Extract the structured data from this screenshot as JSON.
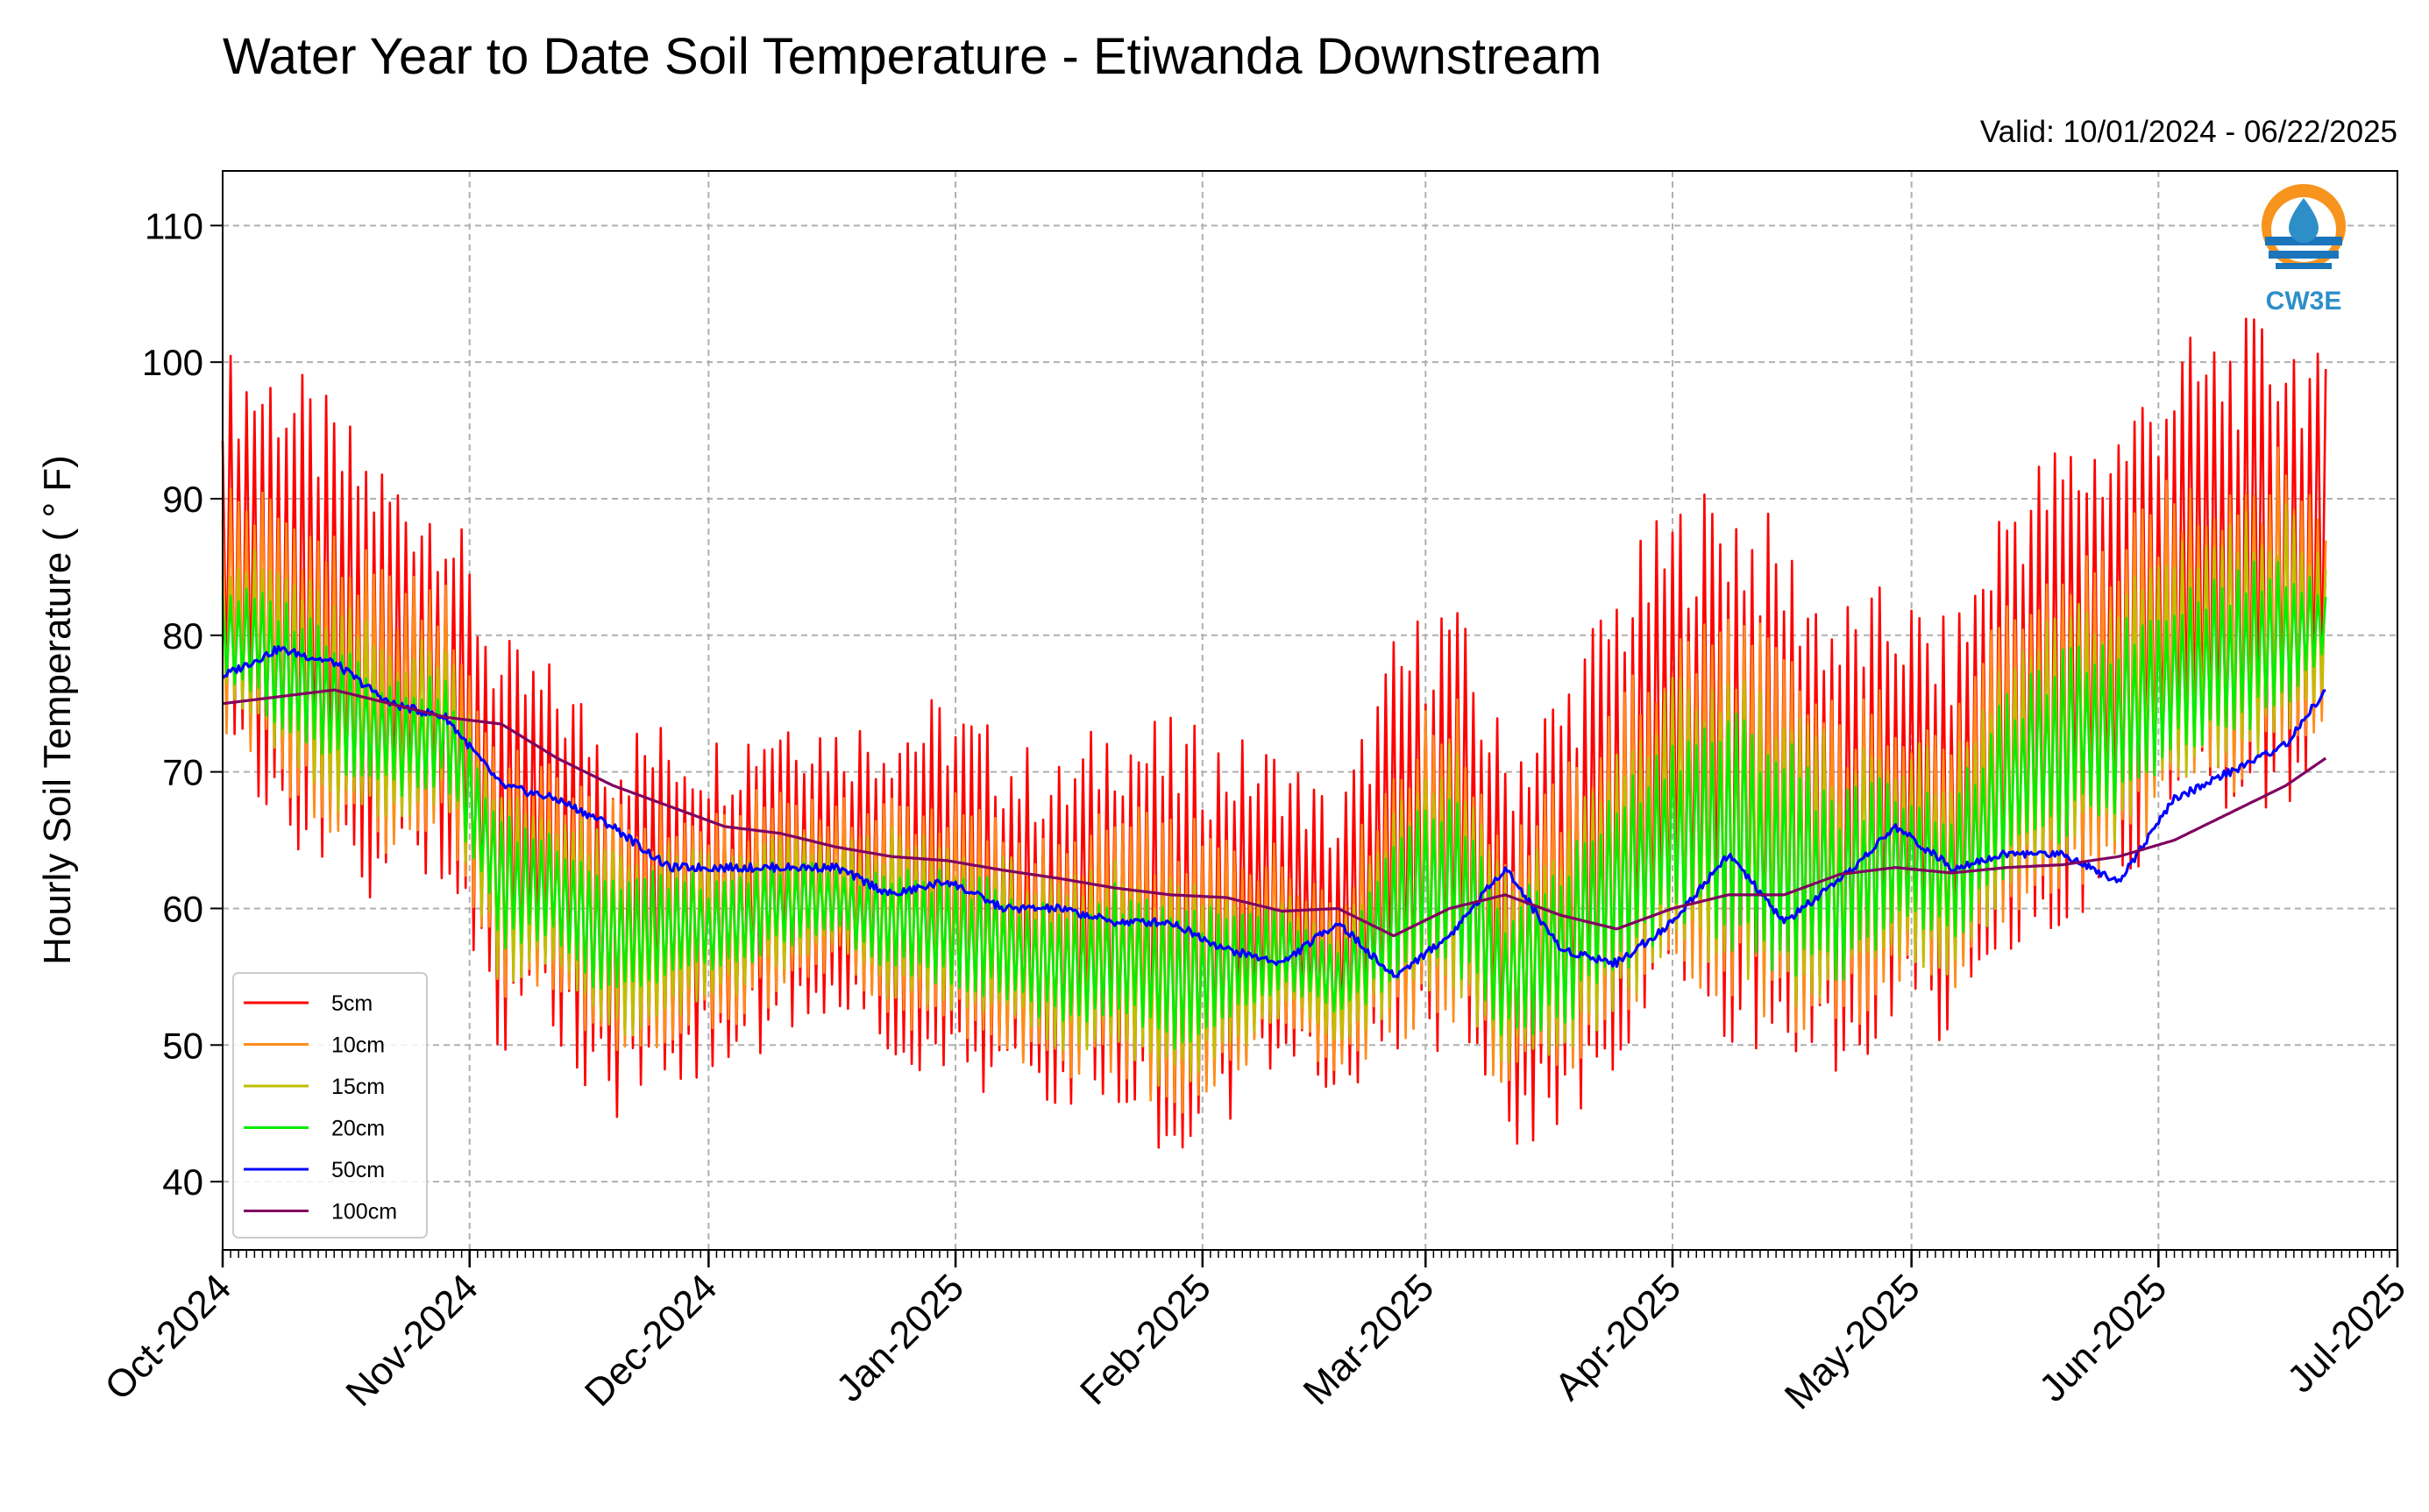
{
  "chart_data": {
    "type": "line",
    "title": "Water Year to Date Soil Temperature - Etiwanda Downstream",
    "subtitle": "Valid: 10/01/2024 - 06/22/2025",
    "ylabel": "Hourly Soil Temperature ( ° F)",
    "xlabel": "",
    "ylim": [
      35,
      114
    ],
    "yticks": [
      40,
      50,
      60,
      70,
      80,
      90,
      100,
      110
    ],
    "xlim": [
      "2024-10-01",
      "2025-07-01"
    ],
    "x_tick_labels": [
      "Oct-2024",
      "Nov-2024",
      "Dec-2024",
      "Jan-2025",
      "Feb-2025",
      "Mar-2025",
      "Apr-2025",
      "May-2025",
      "Jun-2025",
      "Jul-2025"
    ],
    "x_tick_dates": [
      "2024-10-01",
      "2024-11-01",
      "2024-12-01",
      "2025-01-01",
      "2025-02-01",
      "2025-03-01",
      "2025-04-01",
      "2025-05-01",
      "2025-06-01",
      "2025-07-01"
    ],
    "grid": true,
    "legend_position": "lower-left",
    "logo_text": "CW3E",
    "x": [
      "2024-10-01",
      "2024-10-08",
      "2024-10-15",
      "2024-10-22",
      "2024-10-29",
      "2024-11-05",
      "2024-11-12",
      "2024-11-19",
      "2024-11-26",
      "2024-12-03",
      "2024-12-10",
      "2024-12-17",
      "2024-12-24",
      "2024-12-31",
      "2025-01-07",
      "2025-01-14",
      "2025-01-21",
      "2025-01-28",
      "2025-02-04",
      "2025-02-11",
      "2025-02-18",
      "2025-02-25",
      "2025-03-04",
      "2025-03-11",
      "2025-03-18",
      "2025-03-25",
      "2025-04-01",
      "2025-04-08",
      "2025-04-15",
      "2025-04-22",
      "2025-04-29",
      "2025-05-06",
      "2025-05-13",
      "2025-05-20",
      "2025-05-27",
      "2025-06-03",
      "2025-06-10",
      "2025-06-17",
      "2025-06-22"
    ],
    "series": [
      {
        "name": "5cm",
        "color": "#ff0000",
        "max": [
          101,
          101,
          97,
          93,
          91,
          80,
          78,
          74,
          74,
          73,
          76,
          74,
          75,
          76,
          73,
          71,
          75,
          74,
          73,
          72,
          68,
          80,
          84,
          73,
          77,
          85,
          90,
          92,
          88,
          83,
          84,
          81,
          92,
          95,
          97,
          102,
          103,
          104,
          100
        ],
        "min": [
          71,
          66,
          61,
          60,
          62,
          49,
          50,
          44,
          47,
          48,
          50,
          52,
          48,
          47,
          46,
          44,
          45,
          40,
          44,
          48,
          45,
          48,
          50,
          42,
          44,
          47,
          53,
          50,
          48,
          46,
          51,
          50,
          55,
          58,
          60,
          64,
          65,
          67,
          72
        ]
      },
      {
        "name": "10cm",
        "color": "#ff8c1a",
        "max": [
          92,
          91,
          88,
          85,
          84,
          72,
          71,
          68,
          68,
          67,
          70,
          68,
          69,
          69,
          67,
          65,
          68,
          67,
          66,
          65,
          62,
          72,
          77,
          66,
          70,
          76,
          81,
          83,
          80,
          75,
          77,
          74,
          83,
          86,
          88,
          92,
          93,
          94,
          90
        ],
        "min": [
          73,
          69,
          65,
          64,
          66,
          52,
          53,
          48,
          50,
          51,
          53,
          55,
          51,
          50,
          49,
          47,
          48,
          44,
          47,
          50,
          48,
          50,
          52,
          46,
          47,
          50,
          55,
          53,
          51,
          50,
          54,
          53,
          58,
          61,
          63,
          67,
          68,
          70,
          74
        ]
      },
      {
        "name": "15cm",
        "color": "#bfbf00",
        "max": [
          87,
          86,
          83,
          80,
          80,
          69,
          68,
          65,
          65,
          64,
          66,
          65,
          66,
          65,
          64,
          62,
          64,
          63,
          62,
          62,
          59,
          68,
          73,
          63,
          66,
          72,
          77,
          78,
          76,
          72,
          73,
          71,
          79,
          82,
          84,
          88,
          89,
          90,
          87
        ],
        "min": [
          75,
          71,
          67,
          66,
          68,
          54,
          55,
          50,
          52,
          53,
          55,
          57,
          53,
          52,
          51,
          49,
          50,
          46,
          49,
          52,
          50,
          52,
          54,
          48,
          49,
          52,
          57,
          55,
          53,
          52,
          56,
          55,
          60,
          63,
          65,
          69,
          70,
          72,
          76
        ]
      },
      {
        "name": "20cm",
        "color": "#00ee00",
        "max": [
          84,
          83,
          81,
          77,
          77,
          67,
          66,
          63,
          63,
          62,
          64,
          63,
          63,
          63,
          62,
          60,
          62,
          61,
          60,
          60,
          57,
          65,
          70,
          60,
          64,
          69,
          73,
          75,
          73,
          69,
          70,
          68,
          76,
          79,
          81,
          84,
          85,
          86,
          84
        ],
        "min": [
          77,
          73,
          70,
          68,
          69,
          57,
          57,
          52,
          55,
          55,
          57,
          58,
          55,
          54,
          53,
          51,
          52,
          49,
          51,
          54,
          52,
          54,
          56,
          50,
          51,
          54,
          59,
          57,
          55,
          54,
          58,
          57,
          62,
          65,
          67,
          71,
          72,
          74,
          78
        ]
      },
      {
        "name": "50cm",
        "color": "#0000ff",
        "values": [
          77,
          79,
          78,
          75,
          74,
          69,
          68,
          66,
          63,
          63,
          63,
          63,
          61,
          62,
          60,
          60,
          59,
          59,
          57,
          56,
          59,
          55,
          58,
          63,
          57,
          56,
          59,
          64,
          59,
          62,
          66,
          63,
          64,
          64,
          62,
          68,
          70,
          72,
          76
        ]
      },
      {
        "name": "100cm",
        "color": "#800060",
        "values": [
          75,
          75.5,
          76,
          75,
          74,
          73.5,
          71,
          69,
          67.5,
          66,
          65.5,
          64.5,
          63.8,
          63.5,
          62.8,
          62.2,
          61.5,
          61,
          60.8,
          59.8,
          60,
          58,
          60,
          61,
          59.5,
          58.5,
          60,
          61,
          61,
          62.5,
          63,
          62.6,
          63,
          63.2,
          63.8,
          65,
          67,
          69,
          71
        ]
      }
    ]
  }
}
